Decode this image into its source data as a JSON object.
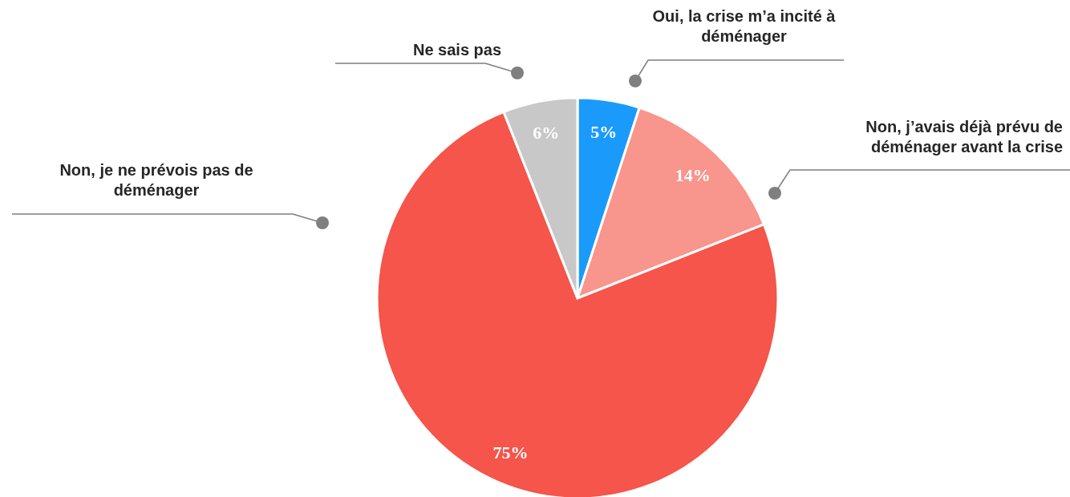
{
  "chart_data": {
    "type": "pie",
    "categories": [
      "Oui, la crise m’a incité à déménager",
      "Non, j’avais déjà prévu de déménager avant la crise",
      "Non, je ne prévois pas de déménager",
      "Ne sais pas"
    ],
    "values": [
      5,
      14,
      75,
      6
    ],
    "colors": [
      "#1a9bfc",
      "#f8958c",
      "#f5554a",
      "#c8c8c8"
    ],
    "value_labels": [
      "5%",
      "14%",
      "75%",
      "6%"
    ]
  }
}
